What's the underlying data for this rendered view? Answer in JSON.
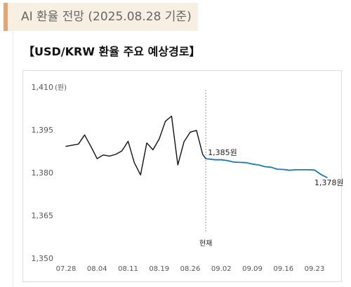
{
  "header": {
    "title": "AI 환율 전망 (2025.08.28 기준)"
  },
  "chart_heading": "【USD/KRW 환율 주요 예상경로】",
  "colors": {
    "actual": "#111111",
    "forecast": "#1a78b6",
    "divider": "#999999",
    "header_bg": "#f8efe3",
    "header_accent": "#e1a673"
  },
  "chart_data": {
    "type": "line",
    "title": "USD/KRW 환율 주요 예상경로",
    "unit": "(원)",
    "ylim": [
      1350,
      1410
    ],
    "y_ticks": [
      1350,
      1365,
      1380,
      1395,
      1410
    ],
    "y_tick_labels": [
      "1,350",
      "1,365",
      "1,380",
      "1,395",
      "1,410"
    ],
    "x_tick_labels": [
      "07.28",
      "08.04",
      "08.11",
      "08.19",
      "08.26",
      "09.02",
      "09.09",
      "09.16",
      "09.23"
    ],
    "x_tick_index": [
      0,
      5,
      10,
      15,
      20,
      25,
      30,
      35,
      40
    ],
    "now_label": "현재",
    "now_index": 22.5,
    "series": [
      {
        "role": "actual",
        "x": [
          0,
          2,
          3,
          4,
          5,
          6,
          7,
          8,
          9,
          10,
          11,
          12,
          13,
          14,
          15,
          16,
          17,
          18,
          19,
          20,
          21,
          22,
          22.5
        ],
        "y": [
          1389.2,
          1390.0,
          1393.2,
          1389.2,
          1384.9,
          1386.2,
          1385.8,
          1386.4,
          1387.6,
          1391.0,
          1383.5,
          1379.2,
          1390.4,
          1388.0,
          1391.8,
          1398.0,
          1399.8,
          1382.7,
          1390.8,
          1394.2,
          1394.8,
          1386.4,
          1384.9
        ]
      },
      {
        "role": "forecast",
        "x": [
          22.5,
          24,
          25,
          26,
          27,
          28,
          29,
          30,
          31,
          32,
          33,
          34,
          35,
          36,
          37,
          38,
          39,
          40,
          41,
          42
        ],
        "y": [
          1384.9,
          1384.5,
          1384.5,
          1384.2,
          1383.7,
          1383.6,
          1383.5,
          1383.0,
          1382.7,
          1382.1,
          1381.9,
          1381.2,
          1381.1,
          1380.8,
          1381.0,
          1381.0,
          1381.0,
          1380.9,
          1379.4,
          1378.3
        ]
      }
    ],
    "labels": [
      {
        "text": "1,385원",
        "x": 22.5,
        "y": 1384.9
      },
      {
        "text": "1,378원",
        "x": 42,
        "y": 1378.3
      }
    ]
  }
}
